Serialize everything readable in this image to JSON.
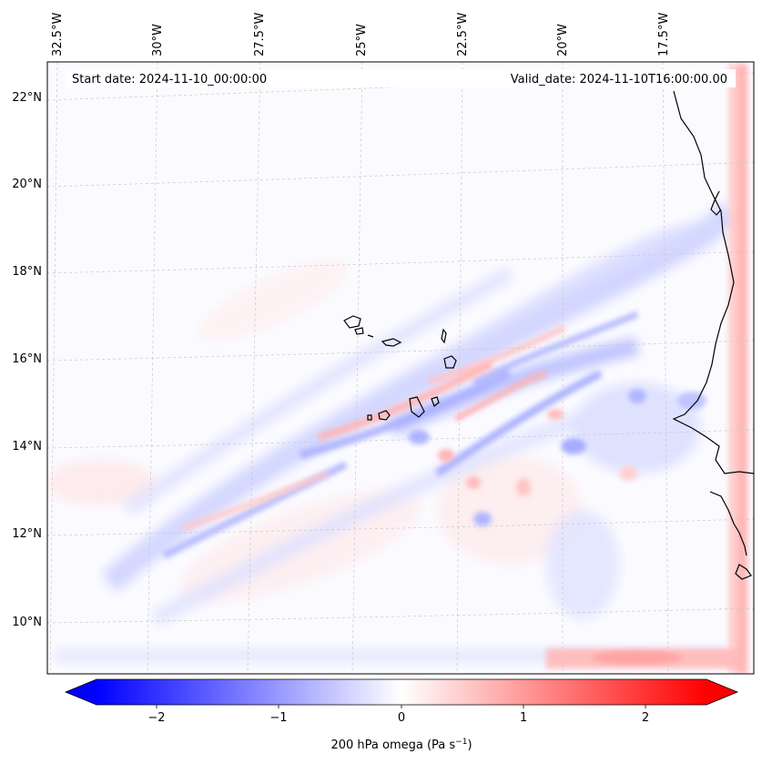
{
  "header": {
    "start_date": "Start date: 2024-11-10_00:00:00",
    "valid_date": "Valid_date: 2024-11-10T16:00:00.00"
  },
  "longitude_labels": [
    "32.5°W",
    "30°W",
    "27.5°W",
    "25°W",
    "22.5°W",
    "20°W",
    "17.5°W"
  ],
  "latitude_labels": [
    "22°N",
    "20°N",
    "18°N",
    "16°N",
    "14°N",
    "12°N",
    "10°N"
  ],
  "colorbar": {
    "tick_labels": [
      "−2",
      "−1",
      "0",
      "1",
      "2"
    ],
    "label_text": "200 hPa omega (Pa s",
    "label_sup": "−1",
    "label_close": ")",
    "min": -2.6,
    "max": 2.6,
    "colors": {
      "negative": "#0000ff",
      "zero": "#ffffff",
      "positive": "#ff0000"
    }
  },
  "map": {
    "projection": "lambert-conformal",
    "lon_range": [
      -33,
      -15.5
    ],
    "lat_range": [
      9,
      22.5
    ],
    "field": "200 hPa omega",
    "coastline_color": "#000000",
    "gridline_color": "#c8c8c8"
  }
}
